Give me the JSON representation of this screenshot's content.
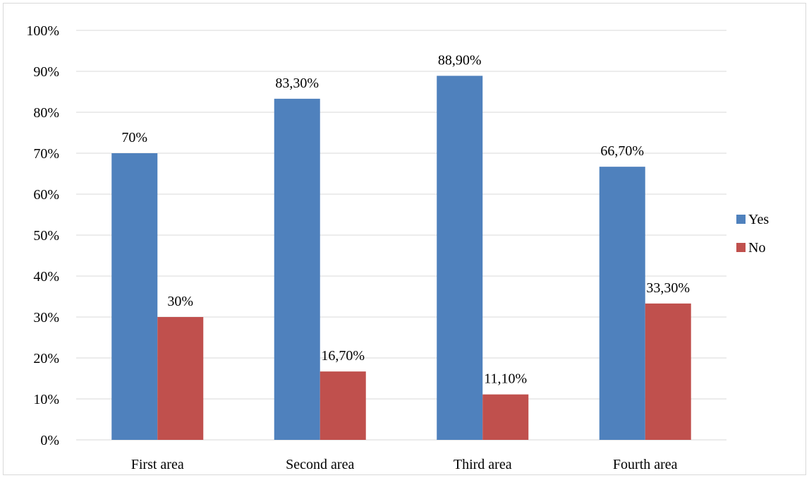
{
  "chart_data": {
    "type": "bar",
    "title": "",
    "xlabel": "",
    "ylabel": "",
    "categories": [
      "First area",
      "Second area",
      "Third area",
      "Fourth area"
    ],
    "series": [
      {
        "name": "Yes",
        "color": "#4f81bd",
        "values": [
          70,
          83.3,
          88.9,
          66.7
        ],
        "labels": [
          "70%",
          "83,30%",
          "88,90%",
          "66,70%"
        ]
      },
      {
        "name": "No",
        "color": "#c0504d",
        "values": [
          30,
          16.7,
          11.1,
          33.3
        ],
        "labels": [
          "30%",
          "16,70%",
          "11,10%",
          "33,30%"
        ]
      }
    ],
    "ylim": [
      0,
      100
    ],
    "yticks": [
      0,
      10,
      20,
      30,
      40,
      50,
      60,
      70,
      80,
      90,
      100
    ],
    "ytick_labels": [
      "0%",
      "10%",
      "20%",
      "30%",
      "40%",
      "50%",
      "60%",
      "70%",
      "80%",
      "90%",
      "100%"
    ],
    "grid": true,
    "gridline_color": "#d9d9d9",
    "legend_position": "right"
  }
}
